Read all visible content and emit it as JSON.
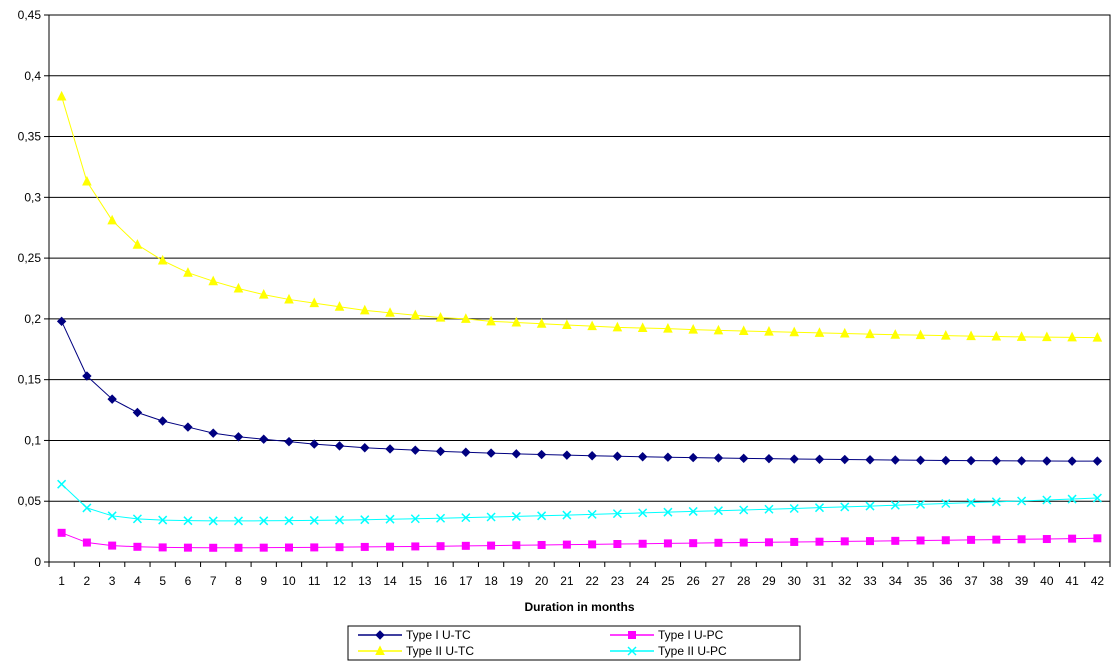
{
  "chart_data": {
    "type": "line",
    "title": "",
    "xlabel": "Duration in months",
    "ylabel": "",
    "x": [
      1,
      2,
      3,
      4,
      5,
      6,
      7,
      8,
      9,
      10,
      11,
      12,
      13,
      14,
      15,
      16,
      17,
      18,
      19,
      20,
      21,
      22,
      23,
      24,
      25,
      26,
      27,
      28,
      29,
      30,
      31,
      32,
      33,
      34,
      35,
      36,
      37,
      38,
      39,
      40,
      41,
      42
    ],
    "ylim": [
      0,
      0.45
    ],
    "yticks": [
      "0",
      "0,05",
      "0,1",
      "0,15",
      "0,2",
      "0,25",
      "0,3",
      "0,35",
      "0,4",
      "0,45"
    ],
    "grid": true,
    "legend": "bottom",
    "series": [
      {
        "name": "Type I U-TC",
        "color": "#000080",
        "marker": "diamond",
        "values": [
          0.198,
          0.153,
          0.134,
          0.123,
          0.116,
          0.111,
          0.106,
          0.103,
          0.101,
          0.099,
          0.097,
          0.0955,
          0.094,
          0.093,
          0.092,
          0.091,
          0.0903,
          0.0896,
          0.089,
          0.0884,
          0.0879,
          0.0874,
          0.087,
          0.0866,
          0.0862,
          0.0859,
          0.0856,
          0.0853,
          0.085,
          0.0847,
          0.0845,
          0.0843,
          0.0841,
          0.0839,
          0.0837,
          0.0835,
          0.0834,
          0.0833,
          0.0832,
          0.0831,
          0.083,
          0.083
        ]
      },
      {
        "name": "Type I U-PC",
        "color": "#ff00ff",
        "marker": "square",
        "values": [
          0.024,
          0.016,
          0.0135,
          0.0125,
          0.012,
          0.0118,
          0.0117,
          0.0117,
          0.0118,
          0.0119,
          0.012,
          0.0122,
          0.0124,
          0.0126,
          0.0128,
          0.013,
          0.0133,
          0.0135,
          0.0138,
          0.014,
          0.0143,
          0.0145,
          0.0148,
          0.015,
          0.0153,
          0.0155,
          0.0158,
          0.016,
          0.0162,
          0.0165,
          0.0167,
          0.017,
          0.0172,
          0.0174,
          0.0177,
          0.0179,
          0.0182,
          0.0184,
          0.0187,
          0.0189,
          0.0192,
          0.0195
        ]
      },
      {
        "name": "Type II U-TC",
        "color": "#ffff00",
        "marker": "triangle",
        "values": [
          0.383,
          0.313,
          0.281,
          0.261,
          0.248,
          0.238,
          0.231,
          0.225,
          0.22,
          0.216,
          0.213,
          0.21,
          0.207,
          0.205,
          0.203,
          0.201,
          0.2,
          0.198,
          0.197,
          0.196,
          0.195,
          0.194,
          0.193,
          0.1925,
          0.192,
          0.1912,
          0.1905,
          0.19,
          0.1895,
          0.189,
          0.1885,
          0.188,
          0.1875,
          0.187,
          0.1866,
          0.1862,
          0.1858,
          0.1855,
          0.1852,
          0.185,
          0.1848,
          0.1846
        ]
      },
      {
        "name": "Type II U-PC",
        "color": "#00ffff",
        "marker": "x",
        "values": [
          0.064,
          0.0445,
          0.038,
          0.0355,
          0.0345,
          0.034,
          0.0338,
          0.0338,
          0.0339,
          0.034,
          0.0342,
          0.0345,
          0.0348,
          0.0352,
          0.0356,
          0.036,
          0.0365,
          0.037,
          0.0375,
          0.038,
          0.0386,
          0.0392,
          0.0398,
          0.0404,
          0.041,
          0.0416,
          0.0422,
          0.0428,
          0.0434,
          0.044,
          0.0447,
          0.0453,
          0.046,
          0.0467,
          0.0474,
          0.0481,
          0.0488,
          0.0495,
          0.0502,
          0.051,
          0.0518,
          0.0526
        ]
      }
    ]
  }
}
